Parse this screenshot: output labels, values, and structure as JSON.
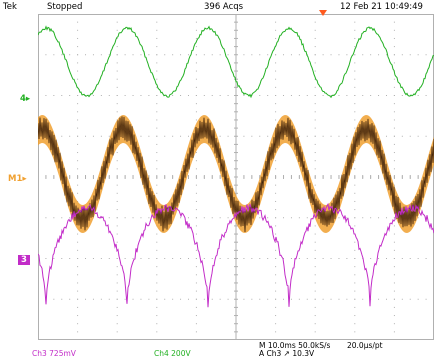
{
  "header": {
    "brand": "Tek",
    "run_state": "Stopped",
    "acquisitions": "396 Acqs",
    "datetime": "12 Feb 21 10:49:49"
  },
  "references": {
    "ch4": "4",
    "math": "M",
    "ch3": "3"
  },
  "readout": {
    "ch3_scale": "Ch3   725mV",
    "ch4_scale": "Ch4    200V",
    "timebase": "M 10.0ms 50.0kS/s",
    "sample_interval": "20.0µs/pt",
    "trigger": "A  Ch3  ↗  10.3V"
  },
  "colors": {
    "ch4": "#22b022",
    "math_fill": "#f0a030",
    "math_dark": "#3a1e08",
    "ch3": "#c22cc8",
    "trigger_marker": "#ff5a1e",
    "grid": "#b0b0b0"
  },
  "icons": [
    "trigger-position-icon",
    "ch4-reference-arrow",
    "math-reference-arrow",
    "ch3-reference-marker"
  ]
}
